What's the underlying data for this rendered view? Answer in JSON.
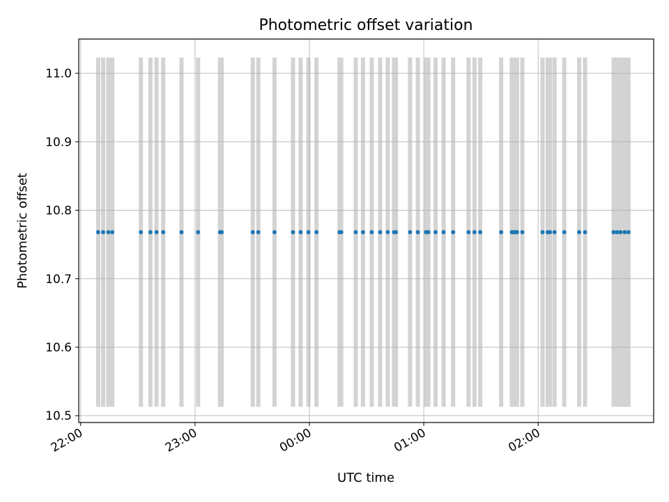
{
  "chart_data": {
    "type": "scatter",
    "title": "Photometric offset variation",
    "xlabel": "UTC time",
    "ylabel": "Photometric offset",
    "x_unit": "minutes since 22:00 UTC",
    "xlim": [
      -1.0,
      300.6
    ],
    "ylim": [
      10.49,
      11.05
    ],
    "grid": true,
    "x_ticks": [
      {
        "value": 0,
        "label": "22:00"
      },
      {
        "value": 60,
        "label": "23:00"
      },
      {
        "value": 120,
        "label": "00:00"
      },
      {
        "value": 180,
        "label": "01:00"
      },
      {
        "value": 240,
        "label": "02:00"
      }
    ],
    "y_ticks": [
      10.5,
      10.6,
      10.7,
      10.8,
      10.9,
      11.0
    ],
    "y_tick_labels": [
      "10.5",
      "10.6",
      "10.7",
      "10.8",
      "10.9",
      "11.0"
    ],
    "band_range": [
      10.513,
      11.023
    ],
    "band_color": "#d3d3d3",
    "point_color": "#1f77b4",
    "series": [
      {
        "name": "",
        "y": 10.768,
        "x": [
          9.2,
          11.8,
          14.5,
          16.6,
          31.6,
          36.6,
          39.8,
          43.3,
          52.9,
          61.6,
          73.1,
          74.0,
          90.3,
          93.2,
          101.7,
          111.4,
          115.4,
          119.5,
          123.7,
          135.8,
          136.7,
          144.3,
          148.1,
          152.7,
          157.1,
          161.1,
          164.4,
          165.4,
          172.8,
          176.9,
          181.2,
          182.4,
          186.2,
          190.4,
          195.4,
          203.5,
          206.6,
          209.6,
          220.6,
          226.2,
          227.1,
          228.1,
          228.9,
          231.7,
          242.3,
          245.0,
          246.2,
          248.6,
          253.7,
          261.5,
          264.6,
          279.6,
          281.4,
          283.2,
          285.4,
          287.4
        ]
      }
    ]
  }
}
